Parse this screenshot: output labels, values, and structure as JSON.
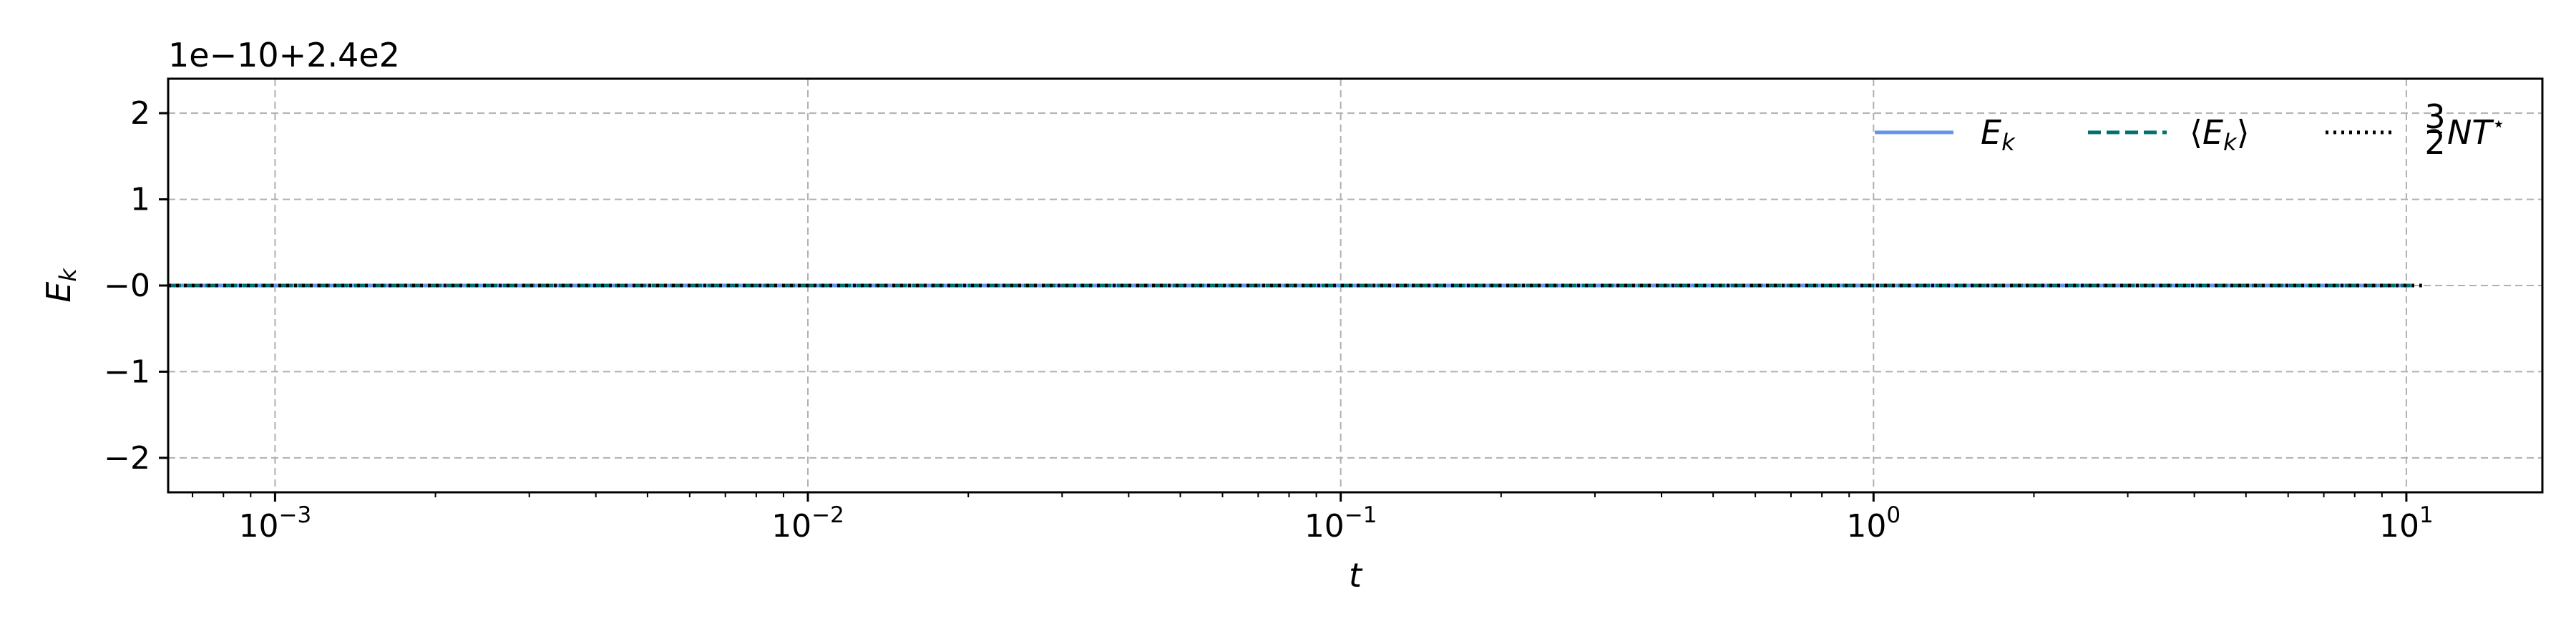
{
  "chart_data": {
    "type": "line",
    "xlabel": "t",
    "ylabel": "E",
    "ylabel_sub": "k",
    "xscale": "log",
    "xlim": [
      0.00063,
      18
    ],
    "ylim": [
      -2.4,
      2.4
    ],
    "y_offset_text": "1e−10+2.4e2",
    "x_ticks": [
      {
        "value": 0.001,
        "base": "10",
        "exp": "−3"
      },
      {
        "value": 0.01,
        "base": "10",
        "exp": "−2"
      },
      {
        "value": 0.1,
        "base": "10",
        "exp": "−1"
      },
      {
        "value": 1,
        "base": "10",
        "exp": "0"
      },
      {
        "value": 10,
        "base": "10",
        "exp": "1"
      }
    ],
    "y_ticks": [
      {
        "value": 2,
        "label": "2"
      },
      {
        "value": 1,
        "label": "1"
      },
      {
        "value": 0,
        "label": "−0"
      },
      {
        "value": -1,
        "label": "−1"
      },
      {
        "value": -2,
        "label": "−2"
      }
    ],
    "grid": true,
    "legend_placement": "top-right",
    "series": [
      {
        "name": "E_k",
        "style": "solid",
        "color": "#6495ED",
        "x": [
          0.00063,
          10.2
        ],
        "y": [
          0,
          0
        ]
      },
      {
        "name": "⟨E_k⟩",
        "style": "dashed",
        "color": "#007070",
        "x": [
          0.00063,
          10.2
        ],
        "y": [
          0,
          0
        ]
      },
      {
        "name": "3/2 N T*",
        "style": "dotted",
        "color": "#000000",
        "x": [
          0.00063,
          10.7
        ],
        "y": [
          0,
          0
        ]
      }
    ],
    "legend": {
      "ek": {
        "main": "E",
        "sub": "k"
      },
      "avg": {
        "left": "⟨",
        "main": "E",
        "sub": "k",
        "right": "⟩"
      },
      "thermal": {
        "num": "3",
        "den": "2",
        "main": "NT",
        "sup": "⋆"
      }
    }
  }
}
